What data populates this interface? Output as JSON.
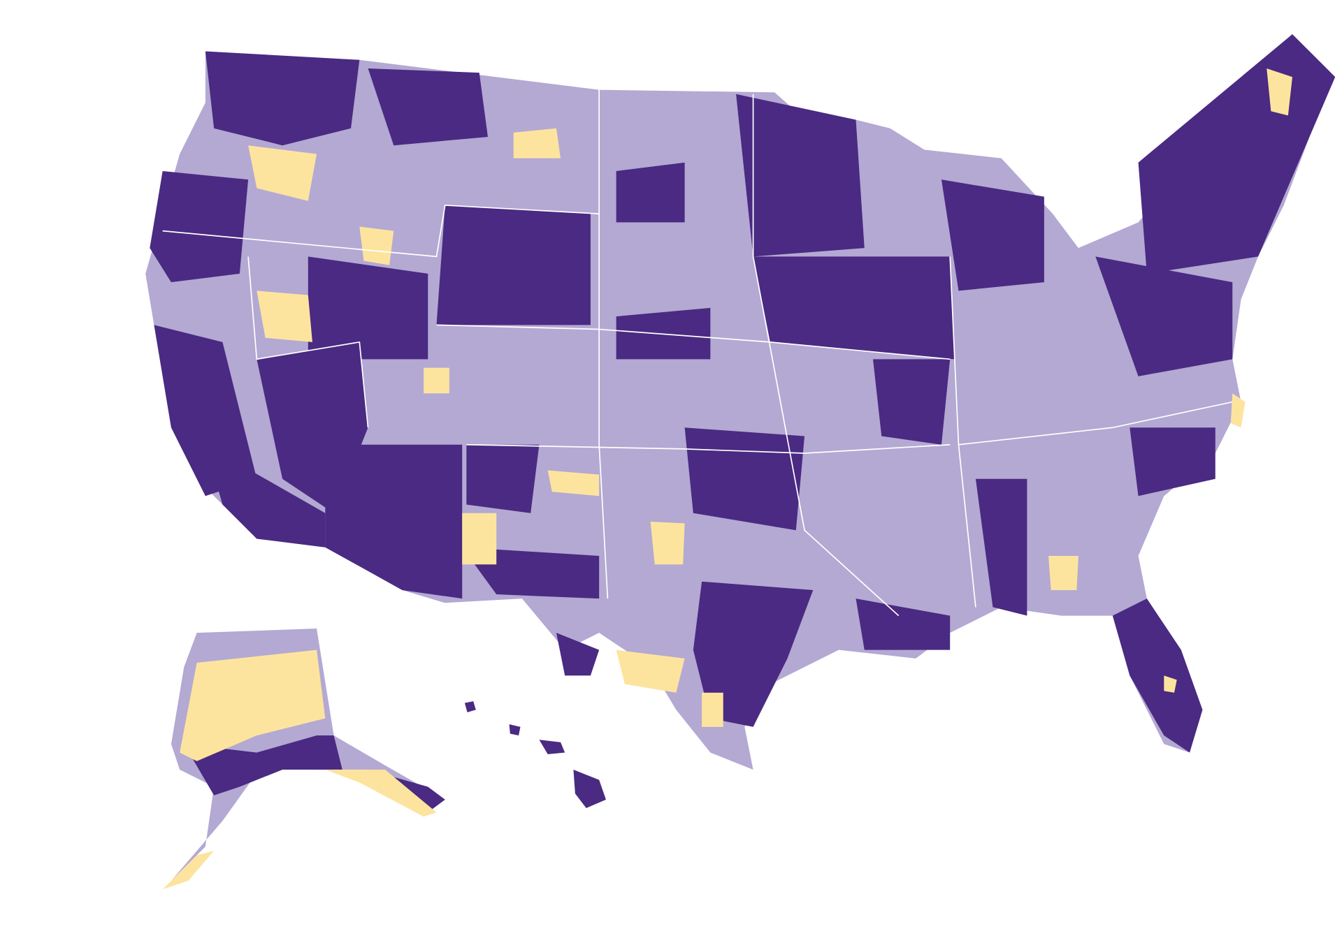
{
  "map": {
    "colors": [
      "#4a2a82",
      "#b3a9d3",
      "#fde49e"
    ]
  }
}
